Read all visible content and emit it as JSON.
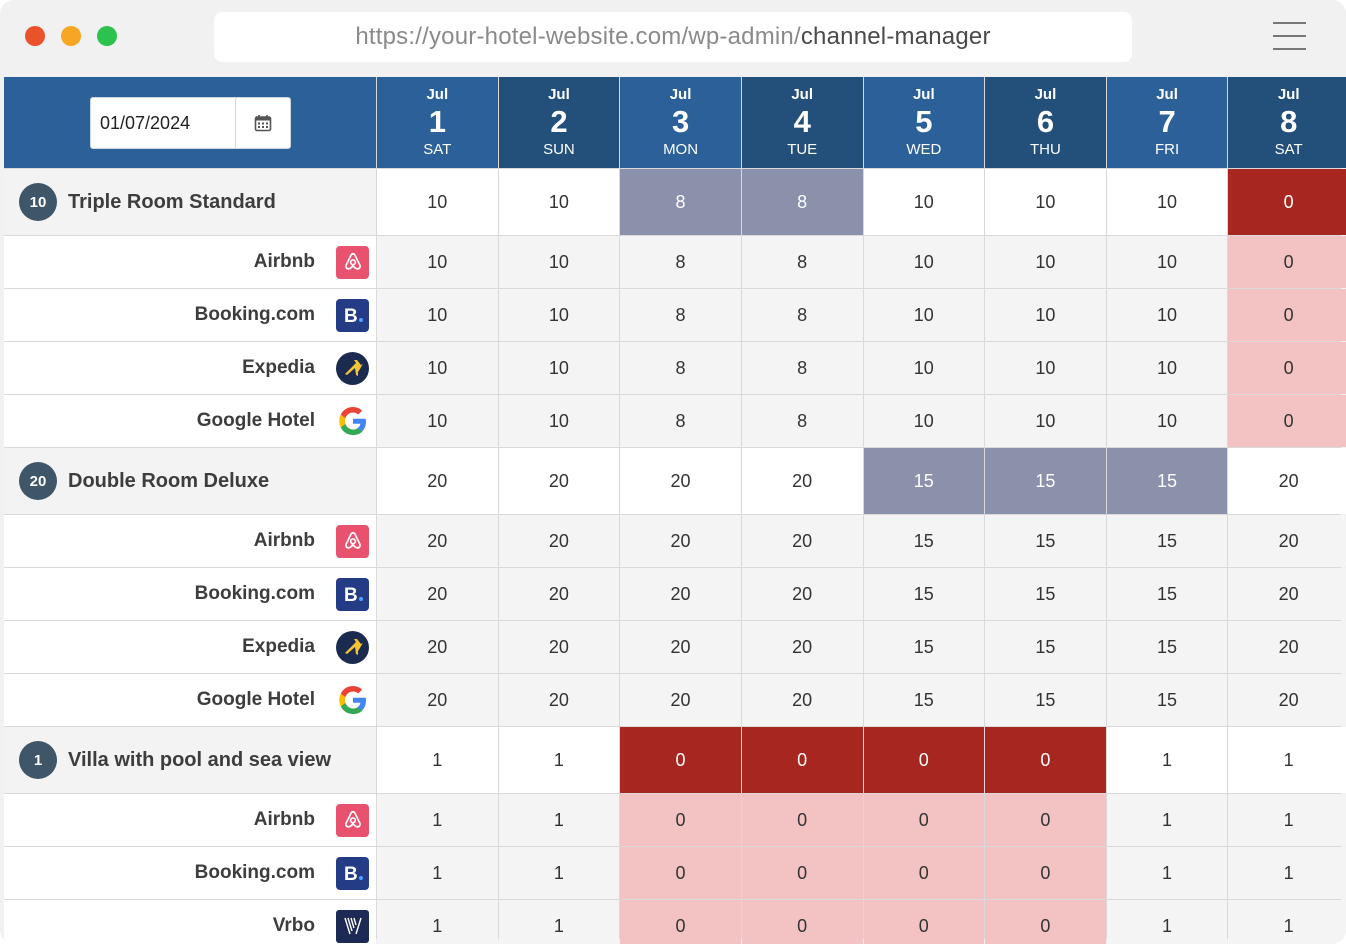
{
  "browser": {
    "url_base": "https://your-hotel-website.com/wp-admin/",
    "url_path": "channel-manager"
  },
  "date_picker": {
    "value": "01/07/2024"
  },
  "days": [
    {
      "month": "Jul",
      "num": "1",
      "weekday": "SAT"
    },
    {
      "month": "Jul",
      "num": "2",
      "weekday": "SUN"
    },
    {
      "month": "Jul",
      "num": "3",
      "weekday": "MON"
    },
    {
      "month": "Jul",
      "num": "4",
      "weekday": "TUE"
    },
    {
      "month": "Jul",
      "num": "5",
      "weekday": "WED"
    },
    {
      "month": "Jul",
      "num": "6",
      "weekday": "THU"
    },
    {
      "month": "Jul",
      "num": "7",
      "weekday": "FRI"
    },
    {
      "month": "Jul",
      "num": "8",
      "weekday": "SAT"
    }
  ],
  "rooms": [
    {
      "count": "10",
      "name": "Triple Room Standard",
      "availability": [
        "10",
        "10",
        "8",
        "8",
        "10",
        "10",
        "10",
        "0"
      ],
      "states": [
        "normal",
        "normal",
        "modified",
        "modified",
        "normal",
        "normal",
        "normal",
        "soldout"
      ],
      "channels": [
        {
          "name": "Airbnb",
          "logo": "airbnb-logo-icon",
          "values": [
            "10",
            "10",
            "8",
            "8",
            "10",
            "10",
            "10",
            "0"
          ]
        },
        {
          "name": "Booking.com",
          "logo": "booking-logo-icon",
          "values": [
            "10",
            "10",
            "8",
            "8",
            "10",
            "10",
            "10",
            "0"
          ]
        },
        {
          "name": "Expedia",
          "logo": "expedia-logo-icon",
          "values": [
            "10",
            "10",
            "8",
            "8",
            "10",
            "10",
            "10",
            "0"
          ]
        },
        {
          "name": "Google Hotel",
          "logo": "google-logo-icon",
          "values": [
            "10",
            "10",
            "8",
            "8",
            "10",
            "10",
            "10",
            "0"
          ]
        }
      ]
    },
    {
      "count": "20",
      "name": "Double Room Deluxe",
      "availability": [
        "20",
        "20",
        "20",
        "20",
        "15",
        "15",
        "15",
        "20"
      ],
      "states": [
        "normal",
        "normal",
        "normal",
        "normal",
        "modified",
        "modified",
        "modified",
        "normal"
      ],
      "channels": [
        {
          "name": "Airbnb",
          "logo": "airbnb-logo-icon",
          "values": [
            "20",
            "20",
            "20",
            "20",
            "15",
            "15",
            "15",
            "20"
          ]
        },
        {
          "name": "Booking.com",
          "logo": "booking-logo-icon",
          "values": [
            "20",
            "20",
            "20",
            "20",
            "15",
            "15",
            "15",
            "20"
          ]
        },
        {
          "name": "Expedia",
          "logo": "expedia-logo-icon",
          "values": [
            "20",
            "20",
            "20",
            "20",
            "15",
            "15",
            "15",
            "20"
          ]
        },
        {
          "name": "Google Hotel",
          "logo": "google-logo-icon",
          "values": [
            "20",
            "20",
            "20",
            "20",
            "15",
            "15",
            "15",
            "20"
          ]
        }
      ]
    },
    {
      "count": "1",
      "name": "Villa with pool and sea view",
      "availability": [
        "1",
        "1",
        "0",
        "0",
        "0",
        "0",
        "1",
        "1"
      ],
      "states": [
        "normal",
        "normal",
        "soldout",
        "soldout",
        "soldout",
        "soldout",
        "normal",
        "normal"
      ],
      "channels": [
        {
          "name": "Airbnb",
          "logo": "airbnb-logo-icon",
          "values": [
            "1",
            "1",
            "0",
            "0",
            "0",
            "0",
            "1",
            "1"
          ]
        },
        {
          "name": "Booking.com",
          "logo": "booking-logo-icon",
          "values": [
            "1",
            "1",
            "0",
            "0",
            "0",
            "0",
            "1",
            "1"
          ]
        },
        {
          "name": "Vrbo",
          "logo": "vrbo-logo-icon",
          "values": [
            "1",
            "1",
            "0",
            "0",
            "0",
            "0",
            "1",
            "1"
          ]
        }
      ]
    }
  ],
  "colors": {
    "header_blue": "#2b6198",
    "header_blue_dark": "#234f7b",
    "modified": "#8b90ab",
    "soldout": "#a7261f",
    "zero_channel": "#f3c3c3"
  }
}
